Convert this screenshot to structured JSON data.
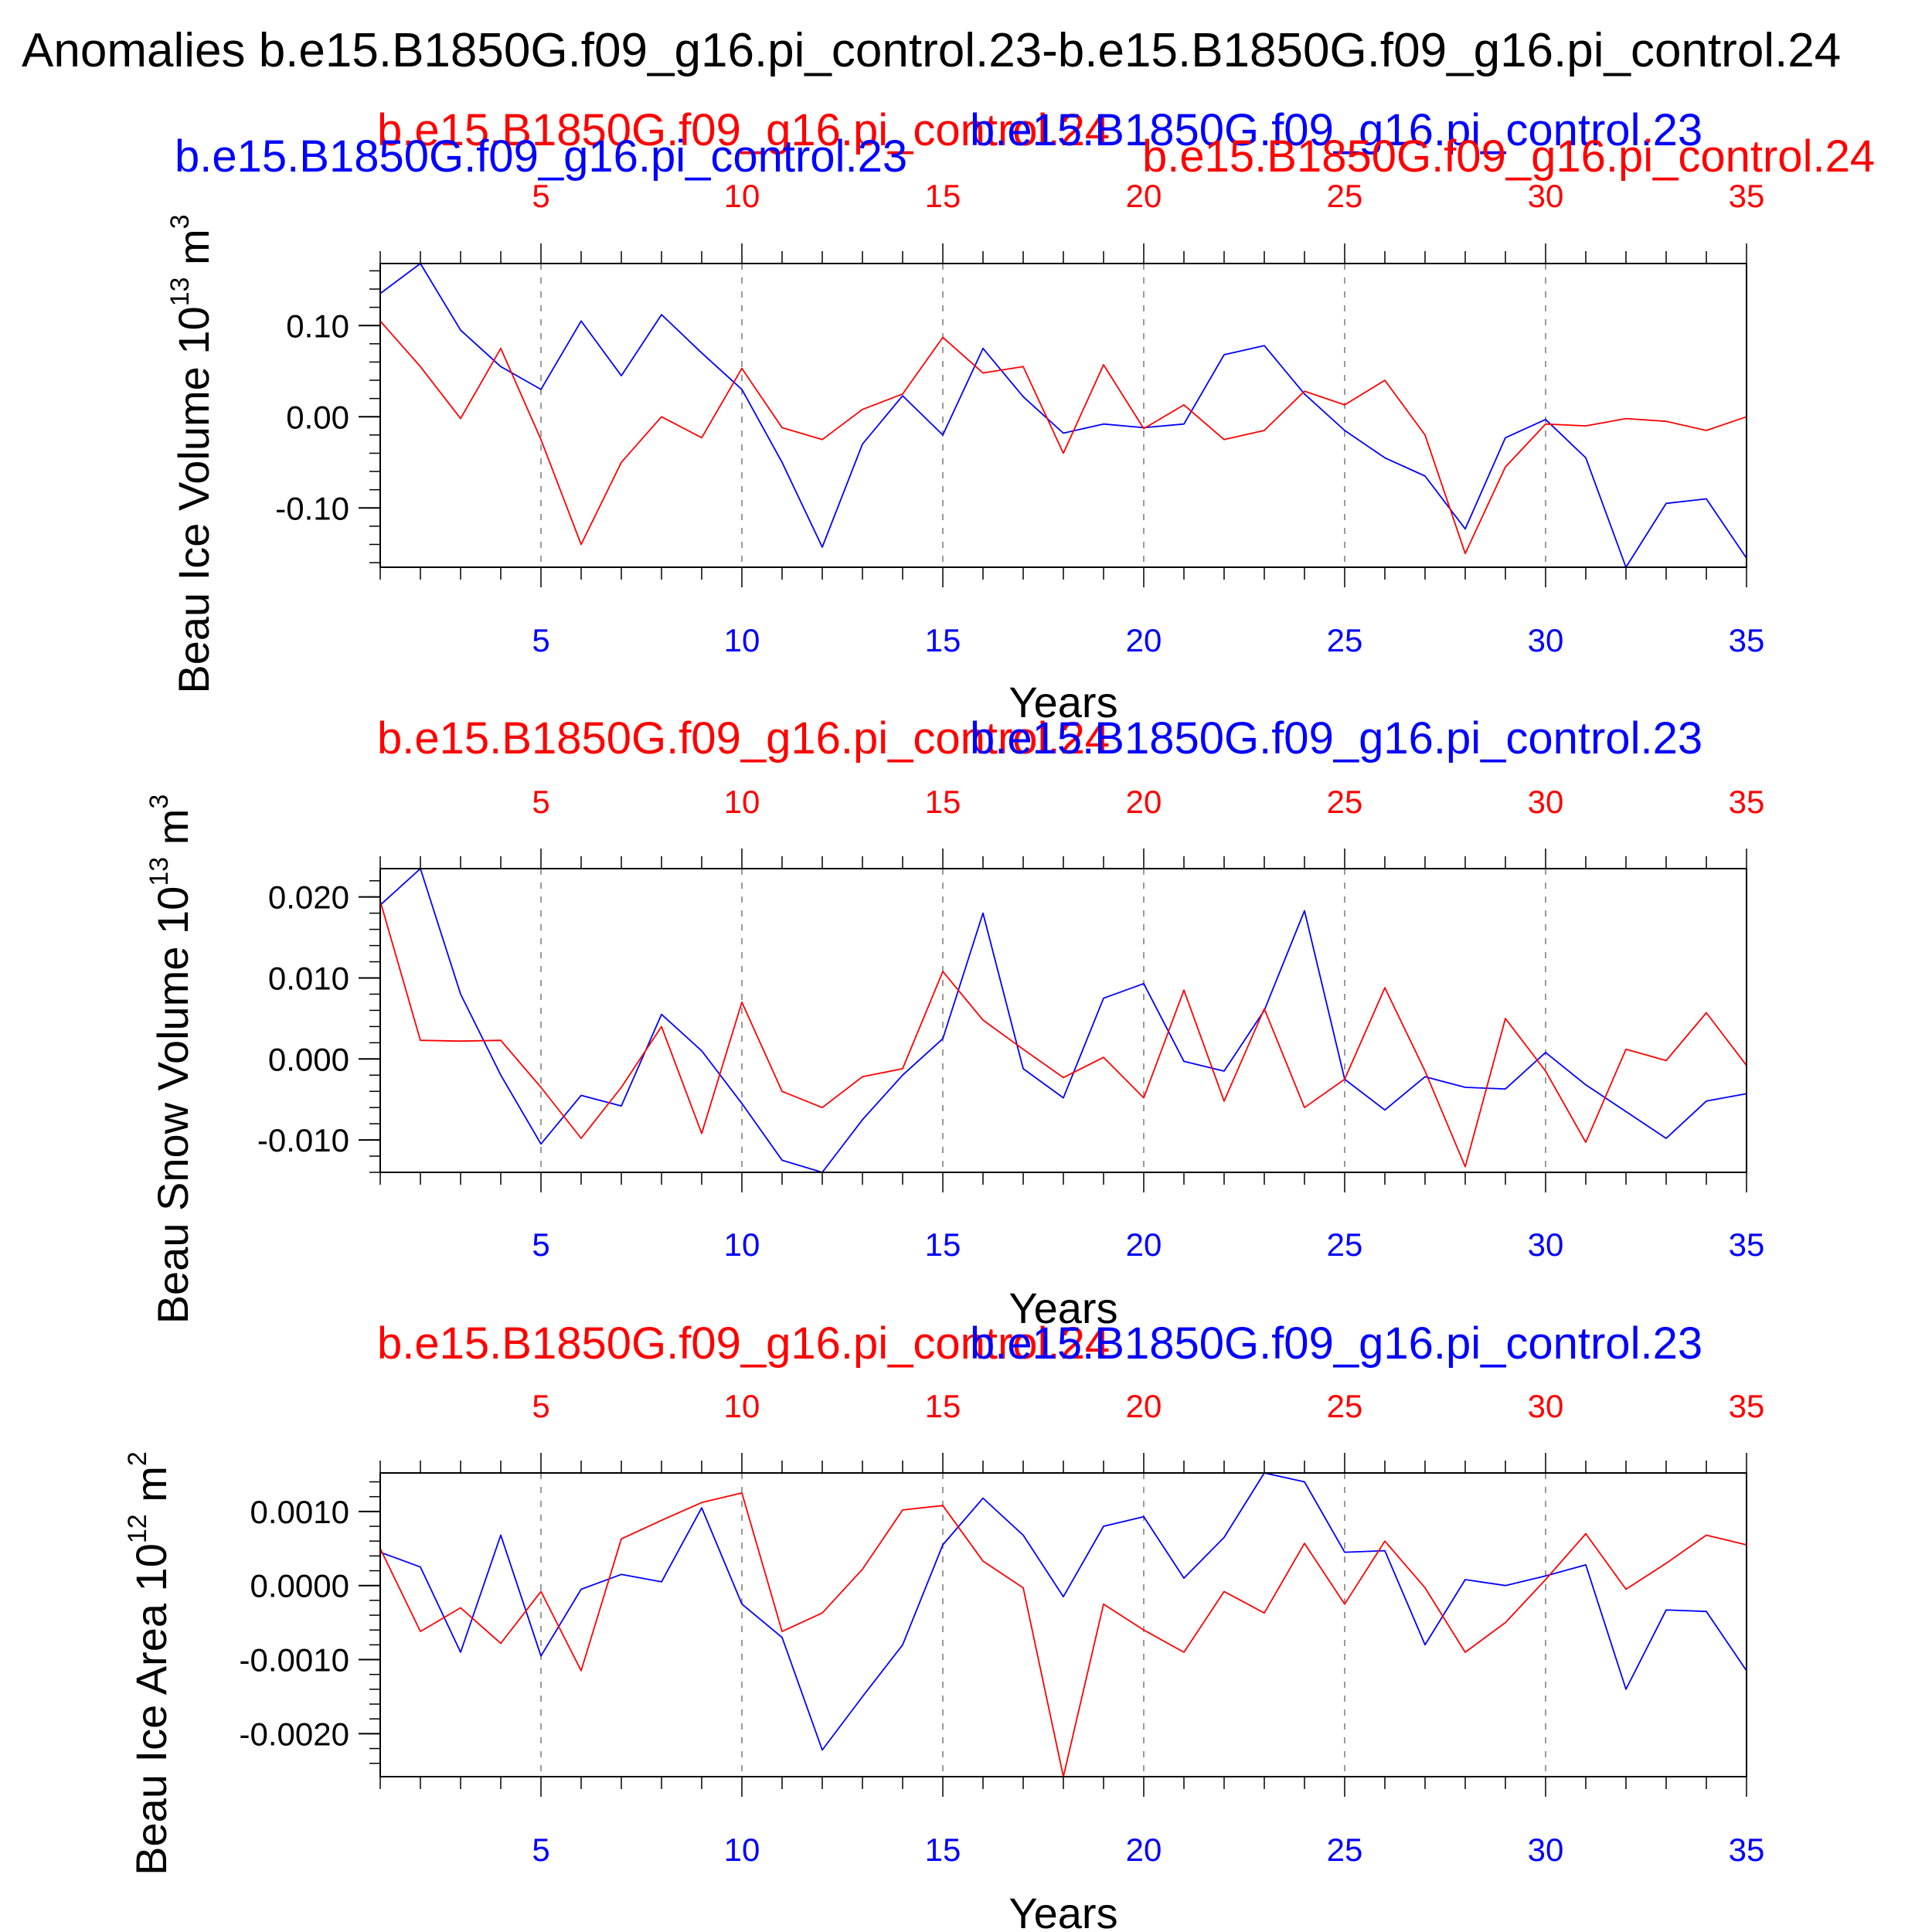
{
  "figure_title": "Anomalies b.e15.B1850G.f09_g16.pi_control.23-b.e15.B1850G.f09_g16.pi_control.24",
  "colors": {
    "control23": "#0000ff",
    "control24": "#ff0000",
    "axis": "#000000",
    "grid": "#9a9a9a"
  },
  "overlay_labels": {
    "left_red": "b.e15.B1850G.f09_g16.pi_control.24",
    "left_blue": "b.e15.B1850G.f09_g16.pi_control.23",
    "right_blue": "b.e15.B1850G.f09_g16.pi_control.23",
    "right_red": "b.e15.B1850G.f09_g16.pi_control.24"
  },
  "chart_data": [
    {
      "type": "line",
      "ylabel": "Beau Ice Volume 10^13 m^3",
      "ylabel_main": "Beau Ice Volume 10",
      "ylabel_exp": "13",
      "ylabel_unit": " m",
      "ylabel_unit_exp": "3",
      "xlabel": "Years",
      "x_ticks": [
        5,
        10,
        15,
        20,
        25,
        30,
        35
      ],
      "x_ticks_labels": [
        "5",
        "10",
        "15",
        "20",
        "25",
        "30",
        "35"
      ],
      "xlim": [
        1,
        35
      ],
      "ylim": [
        -0.165,
        0.168
      ],
      "y_ticks": [
        0.1,
        0.0,
        -0.1
      ],
      "y_ticks_labels": [
        "0.10",
        "0.00",
        "-0.10"
      ],
      "y_minor_step": 0.02,
      "top_label_red": "b.e15.B1850G.f09_g16.pi_control.24",
      "top_label_blue": "b.e15.B1850G.f09_g16.pi_control.23",
      "series": [
        {
          "name": "b.e15.B1850G.f09_g16.pi_control.23",
          "color": "#0000ff",
          "values": [
            0.135,
            0.168,
            0.095,
            0.055,
            0.03,
            0.105,
            0.045,
            0.112,
            0.07,
            0.03,
            -0.05,
            -0.143,
            -0.03,
            0.023,
            -0.02,
            0.075,
            0.022,
            -0.018,
            -0.008,
            -0.012,
            -0.008,
            0.068,
            0.078,
            0.025,
            -0.015,
            -0.045,
            -0.065,
            -0.123,
            -0.023,
            -0.003,
            -0.045,
            -0.165,
            -0.095,
            -0.09,
            -0.155
          ]
        },
        {
          "name": "b.e15.B1850G.f09_g16.pi_control.24",
          "color": "#ff0000",
          "values": [
            0.105,
            0.055,
            -0.002,
            0.075,
            -0.025,
            -0.14,
            -0.05,
            0.0,
            -0.023,
            0.053,
            -0.012,
            -0.025,
            0.008,
            0.025,
            0.087,
            0.048,
            0.055,
            -0.04,
            0.057,
            -0.013,
            0.013,
            -0.025,
            -0.015,
            0.028,
            0.013,
            0.04,
            -0.02,
            -0.15,
            -0.055,
            -0.008,
            -0.01,
            -0.002,
            -0.005,
            -0.015,
            0.0
          ]
        }
      ]
    },
    {
      "type": "line",
      "ylabel": "Beau Snow Volume 10^13 m^3",
      "ylabel_main": "Beau Snow Volume 10",
      "ylabel_exp": "13",
      "ylabel_unit": " m",
      "ylabel_unit_exp": "3",
      "xlabel": "Years",
      "x_ticks": [
        5,
        10,
        15,
        20,
        25,
        30,
        35
      ],
      "x_ticks_labels": [
        "5",
        "10",
        "15",
        "20",
        "25",
        "30",
        "35"
      ],
      "xlim": [
        1,
        35
      ],
      "ylim": [
        -0.014,
        0.0235
      ],
      "y_ticks": [
        0.02,
        0.01,
        0.0,
        -0.01
      ],
      "y_ticks_labels": [
        "0.020",
        "0.010",
        "0.000",
        "-0.010"
      ],
      "y_minor_step": 0.002,
      "top_label_red": "b.e15.B1850G.f09_g16.pi_control.24",
      "top_label_blue": "b.e15.B1850G.f09_g16.pi_control.23",
      "series": [
        {
          "name": "b.e15.B1850G.f09_g16.pi_control.23",
          "color": "#0000ff",
          "values": [
            0.019,
            0.0235,
            0.008,
            -0.002,
            -0.0105,
            -0.0045,
            -0.0058,
            0.0055,
            0.001,
            -0.0055,
            -0.0125,
            -0.014,
            -0.0075,
            -0.002,
            0.0025,
            0.018,
            -0.0012,
            -0.0048,
            0.0075,
            0.0093,
            -0.0003,
            -0.0015,
            0.006,
            0.0183,
            -0.0025,
            -0.0063,
            -0.0022,
            -0.0035,
            -0.0037,
            0.0008,
            -0.0032,
            -0.0065,
            -0.0098,
            -0.0052,
            -0.0043
          ]
        },
        {
          "name": "b.e15.B1850G.f09_g16.pi_control.24",
          "color": "#ff0000",
          "values": [
            0.0195,
            0.0023,
            0.0022,
            0.0023,
            -0.0035,
            -0.0098,
            -0.0035,
            0.004,
            -0.0092,
            0.007,
            -0.004,
            -0.006,
            -0.0022,
            -0.0012,
            0.0108,
            0.0048,
            0.0012,
            -0.0023,
            0.0002,
            -0.0048,
            0.0085,
            -0.0052,
            0.0062,
            -0.006,
            -0.0025,
            0.0088,
            -0.0015,
            -0.0133,
            0.005,
            -0.0015,
            -0.0103,
            0.0012,
            -0.0002,
            0.0057,
            -0.0008
          ]
        }
      ]
    },
    {
      "type": "line",
      "ylabel": "Beau Ice Area 10^12 m^2",
      "ylabel_main": "Beau Ice Area 10",
      "ylabel_exp": "12",
      "ylabel_unit": " m",
      "ylabel_unit_exp": "2",
      "xlabel": "Years",
      "x_ticks": [
        5,
        10,
        15,
        20,
        25,
        30,
        35
      ],
      "x_ticks_labels": [
        "5",
        "10",
        "15",
        "20",
        "25",
        "30",
        "35"
      ],
      "xlim": [
        1,
        35
      ],
      "ylim": [
        -0.00258,
        0.00152
      ],
      "y_ticks": [
        0.001,
        0.0,
        -0.001,
        -0.002
      ],
      "y_ticks_labels": [
        "0.0010",
        "0.0000",
        "-0.0010",
        "-0.0020"
      ],
      "y_minor_step": 0.0002,
      "top_label_red": "b.e15.B1850G.f09_g16.pi_control.24",
      "top_label_blue": "b.e15.B1850G.f09_g16.pi_control.23",
      "series": [
        {
          "name": "b.e15.B1850G.f09_g16.pi_control.23",
          "color": "#0000ff",
          "values": [
            0.00045,
            0.00025,
            -0.0009,
            0.00068,
            -0.00095,
            -5e-05,
            0.00015,
            5e-05,
            0.00105,
            -0.00025,
            -0.0007,
            -0.00222,
            -0.0015,
            -0.0008,
            0.00055,
            0.00118,
            0.00068,
            -0.00015,
            0.0008,
            0.00093,
            0.0001,
            0.00065,
            0.00152,
            0.0014,
            0.00045,
            0.00047,
            -0.0008,
            8e-05,
            0.0,
            0.00013,
            0.00028,
            -0.0014,
            -0.00033,
            -0.00035,
            -0.00115
          ]
        },
        {
          "name": "b.e15.B1850G.f09_g16.pi_control.24",
          "color": "#ff0000",
          "values": [
            0.0005,
            -0.00062,
            -0.0003,
            -0.00078,
            -8e-05,
            -0.00115,
            0.00063,
            0.00088,
            0.00112,
            0.00125,
            -0.00062,
            -0.00037,
            0.00022,
            0.00102,
            0.00108,
            0.00033,
            -3e-05,
            -0.00258,
            -0.00025,
            -0.0006,
            -0.0009,
            -8e-05,
            -0.00037,
            0.00057,
            -0.00025,
            0.0006,
            -3e-05,
            -0.0009,
            -0.0005,
            8e-05,
            0.0007,
            -5e-05,
            0.0003,
            0.00068,
            0.00055
          ]
        }
      ]
    }
  ]
}
